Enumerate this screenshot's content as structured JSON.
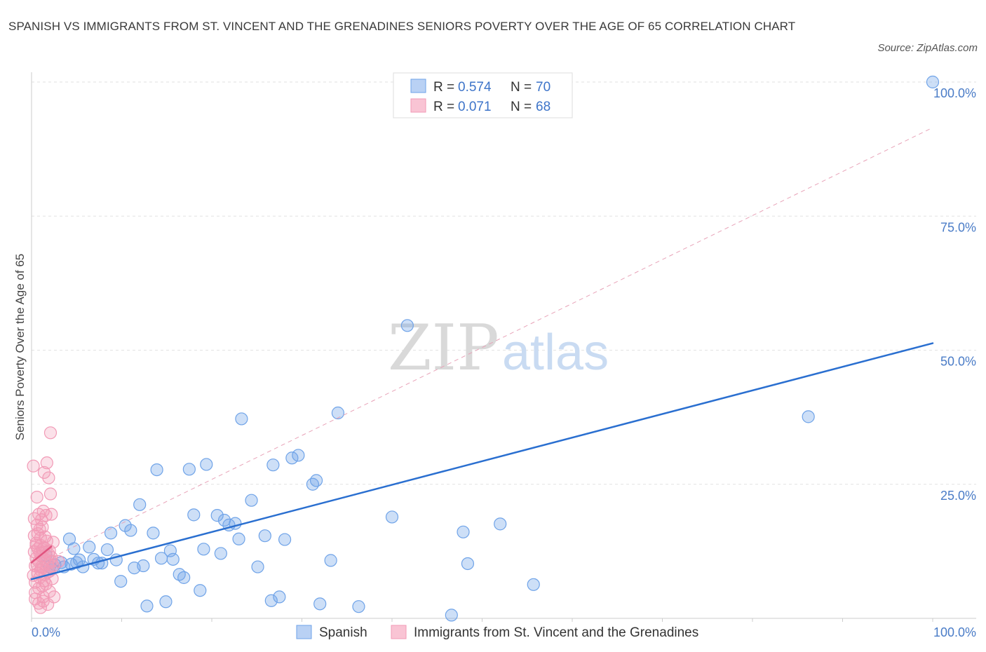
{
  "title": "SPANISH VS IMMIGRANTS FROM ST. VINCENT AND THE GRENADINES SENIORS POVERTY OVER THE AGE OF 65 CORRELATION CHART",
  "source": "Source: ZipAtlas.com",
  "watermark": {
    "zip": "ZIP",
    "atlas": "atlas"
  },
  "chart_data": {
    "type": "scatter",
    "xlabel": "",
    "ylabel": "Seniors Poverty Over the Age of 65",
    "xlim": [
      0,
      100
    ],
    "ylim": [
      0,
      100
    ],
    "x_tick_labels": [
      "0.0%",
      "100.0%"
    ],
    "y_ticks": [
      {
        "value": 25,
        "label": "25.0%"
      },
      {
        "value": 50,
        "label": "50.0%"
      },
      {
        "value": 75,
        "label": "75.0%"
      },
      {
        "value": 100,
        "label": "100.0%"
      }
    ],
    "grid": true,
    "legend_position": "bottom",
    "stats": [
      {
        "r_label": "R = ",
        "r_value": "0.574",
        "n_label": "N = ",
        "n_value": "70"
      },
      {
        "r_label": "R = ",
        "r_value": "0.071",
        "n_label": "N = ",
        "n_value": "68"
      }
    ],
    "series": [
      {
        "name": "Spanish",
        "color": "#6fa3e8",
        "line_color": "#2a6fd0",
        "trend": {
          "x": [
            0,
            100
          ],
          "y": [
            7.3,
            51.3
          ]
        },
        "points": [
          [
            1.6,
            11.8
          ],
          [
            2.0,
            9.6
          ],
          [
            2.3,
            9.2
          ],
          [
            2.6,
            10.0
          ],
          [
            3.3,
            10.4
          ],
          [
            3.6,
            9.6
          ],
          [
            4.4,
            10.1
          ],
          [
            5.0,
            10.4
          ],
          [
            4.2,
            14.8
          ],
          [
            4.7,
            13.0
          ],
          [
            5.3,
            10.9
          ],
          [
            5.7,
            9.6
          ],
          [
            6.4,
            13.3
          ],
          [
            6.9,
            11.0
          ],
          [
            7.4,
            10.3
          ],
          [
            7.8,
            10.3
          ],
          [
            8.4,
            12.8
          ],
          [
            8.8,
            15.9
          ],
          [
            9.4,
            10.9
          ],
          [
            9.9,
            6.9
          ],
          [
            10.4,
            17.3
          ],
          [
            11.0,
            16.4
          ],
          [
            11.4,
            9.4
          ],
          [
            12.0,
            21.2
          ],
          [
            12.4,
            9.8
          ],
          [
            12.8,
            2.3
          ],
          [
            13.5,
            15.9
          ],
          [
            13.9,
            27.7
          ],
          [
            14.4,
            11.2
          ],
          [
            14.9,
            3.1
          ],
          [
            15.4,
            12.6
          ],
          [
            15.7,
            11.0
          ],
          [
            16.4,
            8.2
          ],
          [
            16.9,
            7.6
          ],
          [
            17.5,
            27.8
          ],
          [
            18.0,
            19.3
          ],
          [
            18.7,
            5.2
          ],
          [
            19.1,
            12.9
          ],
          [
            19.4,
            28.7
          ],
          [
            20.6,
            19.2
          ],
          [
            21.0,
            12.1
          ],
          [
            21.4,
            18.3
          ],
          [
            21.9,
            17.4
          ],
          [
            22.6,
            17.7
          ],
          [
            23.0,
            14.8
          ],
          [
            23.3,
            37.2
          ],
          [
            24.4,
            22.0
          ],
          [
            25.1,
            9.6
          ],
          [
            25.9,
            15.4
          ],
          [
            26.6,
            3.3
          ],
          [
            26.8,
            28.6
          ],
          [
            27.5,
            4.0
          ],
          [
            28.1,
            14.7
          ],
          [
            28.9,
            29.9
          ],
          [
            29.6,
            30.4
          ],
          [
            31.2,
            25.0
          ],
          [
            31.6,
            25.7
          ],
          [
            32.0,
            2.7
          ],
          [
            33.2,
            10.8
          ],
          [
            34.0,
            38.3
          ],
          [
            36.3,
            2.2
          ],
          [
            40.0,
            18.9
          ],
          [
            41.7,
            54.6
          ],
          [
            46.6,
            0.6
          ],
          [
            47.9,
            16.1
          ],
          [
            48.4,
            10.2
          ],
          [
            52.0,
            17.6
          ],
          [
            55.7,
            6.3
          ],
          [
            86.2,
            37.6
          ],
          [
            100.0,
            100.0
          ]
        ]
      },
      {
        "name": "Immigrants from St. Vincent and the Grenadines",
        "color": "#f29ab6",
        "line_color": "#e0547f",
        "trend": {
          "x": [
            0,
            2.2
          ],
          "y": [
            10.4,
            13.4
          ]
        },
        "reference_line": {
          "x": [
            0,
            100
          ],
          "y": [
            9.5,
            91.5
          ]
        },
        "points": [
          [
            0.2,
            28.4
          ],
          [
            0.3,
            18.6
          ],
          [
            0.3,
            12.4
          ],
          [
            0.4,
            9.8
          ],
          [
            0.4,
            6.7
          ],
          [
            0.4,
            4.8
          ],
          [
            0.5,
            14.0
          ],
          [
            0.5,
            11.2
          ],
          [
            0.6,
            22.6
          ],
          [
            0.6,
            17.4
          ],
          [
            0.7,
            13.0
          ],
          [
            0.7,
            8.4
          ],
          [
            0.8,
            19.4
          ],
          [
            0.8,
            10.6
          ],
          [
            0.8,
            5.6
          ],
          [
            0.9,
            12.2
          ],
          [
            0.9,
            7.6
          ],
          [
            1.0,
            15.0
          ],
          [
            1.0,
            9.0
          ],
          [
            1.0,
            2.0
          ],
          [
            1.1,
            18.4
          ],
          [
            1.1,
            11.6
          ],
          [
            1.2,
            6.0
          ],
          [
            1.2,
            12.8
          ],
          [
            1.3,
            20.0
          ],
          [
            1.3,
            9.4
          ],
          [
            1.3,
            4.0
          ],
          [
            1.4,
            27.2
          ],
          [
            1.4,
            13.2
          ],
          [
            1.5,
            8.2
          ],
          [
            1.5,
            11.0
          ],
          [
            1.6,
            19.2
          ],
          [
            1.6,
            6.4
          ],
          [
            1.7,
            29.0
          ],
          [
            1.7,
            14.4
          ],
          [
            1.8,
            10.2
          ],
          [
            1.8,
            2.6
          ],
          [
            1.9,
            26.2
          ],
          [
            1.9,
            12.0
          ],
          [
            2.0,
            8.8
          ],
          [
            2.0,
            5.0
          ],
          [
            2.1,
            34.6
          ],
          [
            2.1,
            23.2
          ],
          [
            2.2,
            19.4
          ],
          [
            2.2,
            11.4
          ],
          [
            2.3,
            7.4
          ],
          [
            2.4,
            14.2
          ],
          [
            2.4,
            9.8
          ],
          [
            0.3,
            15.4
          ],
          [
            0.5,
            13.6
          ],
          [
            0.6,
            10.0
          ],
          [
            0.7,
            15.8
          ],
          [
            0.9,
            16.6
          ],
          [
            1.0,
            13.6
          ],
          [
            1.1,
            9.6
          ],
          [
            1.2,
            17.0
          ],
          [
            1.4,
            7.0
          ],
          [
            1.5,
            15.2
          ],
          [
            1.6,
            12.4
          ],
          [
            1.8,
            8.6
          ],
          [
            2.0,
            12.6
          ],
          [
            2.2,
            10.6
          ],
          [
            2.5,
            4.0
          ],
          [
            3.0,
            10.6
          ],
          [
            0.2,
            8.0
          ],
          [
            0.4,
            3.6
          ],
          [
            0.8,
            2.8
          ],
          [
            1.3,
            3.2
          ]
        ]
      }
    ]
  }
}
